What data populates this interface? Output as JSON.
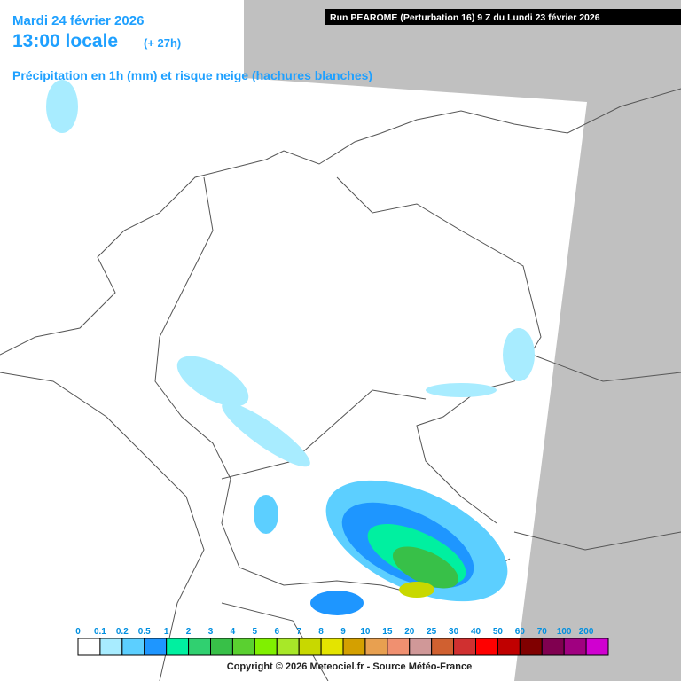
{
  "header": {
    "date": "Mardi 24 février 2026",
    "time": "13:00 locale",
    "lead": "(+ 27h)",
    "subtitle": "Précipitation en 1h (mm) et risque neige (hachures blanches)",
    "run": "Run PEAROME (Perturbation 16) 9 Z du Lundi 23 février 2026"
  },
  "legend": {
    "items": [
      {
        "value": 0,
        "color": "#ffffff"
      },
      {
        "value": 0.1,
        "color": "#a8ecff"
      },
      {
        "value": 0.2,
        "color": "#5ccfff"
      },
      {
        "value": 0.5,
        "color": "#1e96ff"
      },
      {
        "value": 1,
        "color": "#00f0a0"
      },
      {
        "value": 2,
        "color": "#30d070"
      },
      {
        "value": 3,
        "color": "#38c048"
      },
      {
        "value": 4,
        "color": "#5ad030"
      },
      {
        "value": 5,
        "color": "#80f000"
      },
      {
        "value": 6,
        "color": "#a8e828"
      },
      {
        "value": 7,
        "color": "#c8d800"
      },
      {
        "value": 8,
        "color": "#e4e400"
      },
      {
        "value": 9,
        "color": "#d4a000"
      },
      {
        "value": 10,
        "color": "#e8a050"
      },
      {
        "value": 15,
        "color": "#f09070"
      },
      {
        "value": 20,
        "color": "#d09898"
      },
      {
        "value": 25,
        "color": "#d06030"
      },
      {
        "value": 30,
        "color": "#d03030"
      },
      {
        "value": 40,
        "color": "#ff0000"
      },
      {
        "value": 50,
        "color": "#c00000"
      },
      {
        "value": 60,
        "color": "#800000"
      },
      {
        "value": 70,
        "color": "#800050"
      },
      {
        "value": 100,
        "color": "#a00080"
      },
      {
        "value": 200,
        "color": "#d000d0"
      }
    ]
  },
  "copyright": "Copyright © 2026 Meteociel.fr - Source Météo-France"
}
